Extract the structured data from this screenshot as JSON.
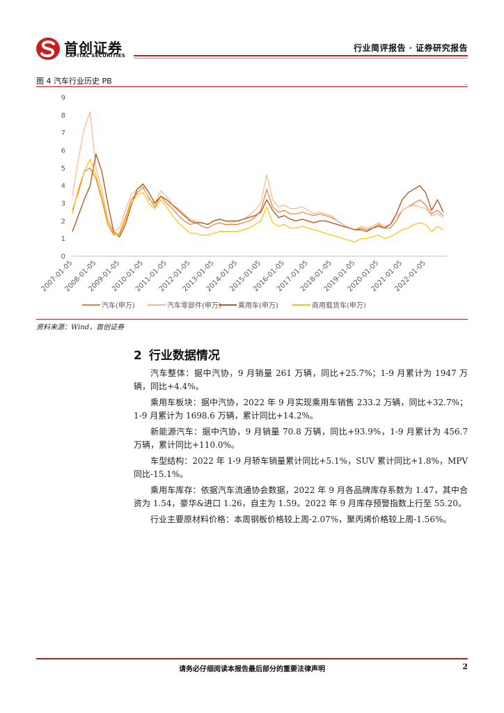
{
  "header": {
    "logo_cn": "首创证券",
    "logo_en": "CAPITAL SECURITIES",
    "right_text": "行业简评报告 · 证券研究报告"
  },
  "figure": {
    "caption": "图 4 汽车行业历史 PB",
    "source": "资料来源：Wind，首创证券"
  },
  "chart_data": {
    "type": "line",
    "title": "",
    "xlabel": "",
    "ylabel": "",
    "ylim": [
      0,
      9
    ],
    "yticks": [
      "0",
      "1",
      "2",
      "3",
      "4",
      "5",
      "6",
      "7",
      "8",
      "9"
    ],
    "xticks": [
      "2007-01-05",
      "2008-01-05",
      "2009-01-05",
      "2010-01-05",
      "2011-01-05",
      "2012-01-05",
      "2013-01-05",
      "2014-01-05",
      "2015-01-05",
      "2016-01-05",
      "2017-01-05",
      "2018-01-05",
      "2019-01-05",
      "2020-01-05",
      "2021-01-05",
      "2022-01-05"
    ],
    "x": [
      2007.0,
      2007.25,
      2007.5,
      2007.75,
      2008.0,
      2008.25,
      2008.5,
      2008.75,
      2009.0,
      2009.25,
      2009.5,
      2009.75,
      2010.0,
      2010.25,
      2010.5,
      2010.75,
      2011.0,
      2011.25,
      2011.5,
      2011.75,
      2012.0,
      2012.25,
      2012.5,
      2012.75,
      2013.0,
      2013.25,
      2013.5,
      2013.75,
      2014.0,
      2014.25,
      2014.5,
      2014.75,
      2015.0,
      2015.25,
      2015.5,
      2015.75,
      2016.0,
      2016.25,
      2016.5,
      2016.75,
      2017.0,
      2017.25,
      2017.5,
      2017.75,
      2018.0,
      2018.25,
      2018.5,
      2018.75,
      2019.0,
      2019.25,
      2019.5,
      2019.75,
      2020.0,
      2020.25,
      2020.5,
      2020.75,
      2021.0,
      2021.25,
      2021.5,
      2021.75,
      2022.0,
      2022.25,
      2022.5,
      2022.75
    ],
    "legend_position": "bottom",
    "series": [
      {
        "name": "汽车(申万)",
        "color": "#ed7d31",
        "width": 1.2,
        "values": [
          2.6,
          3.6,
          4.8,
          5.0,
          4.4,
          3.2,
          1.8,
          1.2,
          1.3,
          2.2,
          3.2,
          3.6,
          3.9,
          3.3,
          2.8,
          3.4,
          3.0,
          2.7,
          2.3,
          2.0,
          1.8,
          1.9,
          1.7,
          1.6,
          1.8,
          1.9,
          1.8,
          1.8,
          1.8,
          1.9,
          2.0,
          2.2,
          2.6,
          3.8,
          2.8,
          2.5,
          2.6,
          2.4,
          2.4,
          2.5,
          2.4,
          2.3,
          2.4,
          2.3,
          2.2,
          2.0,
          1.8,
          1.6,
          1.5,
          1.6,
          1.5,
          1.6,
          1.8,
          1.6,
          1.6,
          2.0,
          2.6,
          2.8,
          3.0,
          3.2,
          2.9,
          2.4,
          2.6,
          2.3
        ]
      },
      {
        "name": "汽车零部件(申万)",
        "color": "#f8b58c",
        "width": 1.2,
        "values": [
          3.4,
          5.5,
          7.2,
          8.2,
          5.0,
          3.8,
          2.1,
          1.4,
          1.6,
          2.6,
          3.5,
          3.8,
          4.0,
          3.2,
          3.0,
          3.7,
          3.4,
          2.9,
          2.7,
          2.4,
          2.1,
          2.0,
          1.9,
          1.8,
          2.0,
          2.1,
          2.0,
          1.9,
          2.0,
          2.1,
          2.3,
          2.6,
          3.0,
          4.6,
          3.2,
          2.8,
          2.9,
          2.7,
          2.7,
          2.8,
          2.6,
          2.4,
          2.5,
          2.4,
          2.3,
          2.0,
          1.8,
          1.6,
          1.5,
          1.7,
          1.6,
          1.7,
          1.9,
          1.7,
          1.8,
          2.2,
          2.6,
          2.8,
          2.9,
          2.8,
          2.7,
          2.3,
          2.4,
          2.2
        ]
      },
      {
        "name": "乘用车(申万)",
        "color": "#b65a1c",
        "width": 1.4,
        "values": [
          1.4,
          2.3,
          3.2,
          4.0,
          5.8,
          4.8,
          3.0,
          1.4,
          1.1,
          1.8,
          2.9,
          3.8,
          4.1,
          3.6,
          3.0,
          3.4,
          3.2,
          2.9,
          2.6,
          2.3,
          2.0,
          1.9,
          1.9,
          1.8,
          2.0,
          2.1,
          2.0,
          2.0,
          2.0,
          2.1,
          2.2,
          2.3,
          2.5,
          3.2,
          2.6,
          2.2,
          2.3,
          2.1,
          2.0,
          2.1,
          2.0,
          1.9,
          2.0,
          2.0,
          1.9,
          1.8,
          1.7,
          1.6,
          1.5,
          1.5,
          1.4,
          1.6,
          1.7,
          1.6,
          1.8,
          2.4,
          3.2,
          3.6,
          3.8,
          4.0,
          3.6,
          2.6,
          3.2,
          2.5
        ]
      },
      {
        "name": "商用载货车(申万)",
        "color": "#ffc000",
        "width": 1.2,
        "values": [
          2.4,
          3.8,
          4.8,
          5.5,
          4.6,
          3.4,
          2.0,
          1.3,
          1.2,
          2.0,
          3.0,
          3.5,
          3.6,
          3.0,
          2.7,
          3.2,
          2.8,
          2.3,
          1.9,
          1.6,
          1.3,
          1.3,
          1.2,
          1.2,
          1.3,
          1.4,
          1.4,
          1.4,
          1.4,
          1.5,
          1.6,
          1.8,
          2.0,
          2.8,
          1.9,
          1.7,
          1.8,
          1.6,
          1.6,
          1.7,
          1.6,
          1.5,
          1.4,
          1.3,
          1.2,
          1.1,
          1.0,
          0.9,
          0.8,
          1.0,
          1.0,
          1.1,
          1.2,
          1.0,
          1.1,
          1.3,
          1.5,
          1.6,
          1.8,
          1.9,
          1.8,
          1.4,
          1.7,
          1.5
        ]
      }
    ]
  },
  "section": {
    "number": "2",
    "title": "行业数据情况"
  },
  "paragraphs": [
    "汽车整体：据中汽协，9 月销量 261 万辆，同比+25.7%；1-9 月累计为 1947 万辆，同比+4.4%。",
    "乘用车板块：据中汽协，2022 年 9 月实现乘用车销售 233.2 万辆，同比+32.7%；1-9 月累计为 1698.6 万辆，累计同比+14.2%。",
    "新能源汽车：据中汽协，9 月销量 70.8 万辆，同比+93.9%，1-9 月累计为 456.7 万辆，累计同比+110.0%。",
    "车型结构：2022 年 1-9 月轿车销量累计同比+5.1%，SUV 累计同比+1.8%，MPV 同比-15.1%。",
    "乘用车库存：依据汽车流通协会数据，2022 年 9 月各品牌库存系数为 1.47，其中合资为 1.54，豪华&进口 1.26，自主为 1.59。2022 年 9 月库存预警指数上行至 55.20。",
    "行业主要原材料价格：本周钢板价格较上周-2.07%，聚丙烯价格较上周-1.56%。"
  ],
  "footer": {
    "disclaimer": "请务必仔细阅读本报告最后部分的重要法律声明",
    "page_number": "2"
  },
  "colors": {
    "accent_red": "#c81e1e"
  }
}
